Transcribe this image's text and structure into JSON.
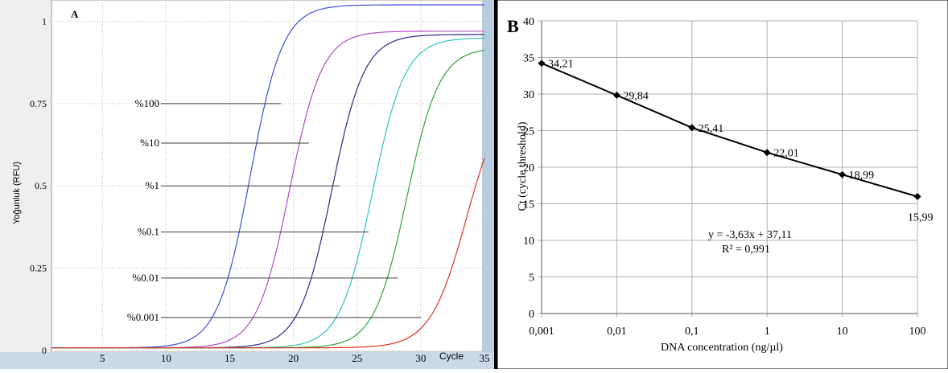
{
  "chart_data": [
    {
      "type": "line",
      "panel_label": "A",
      "ylabel": "Yoğunluk (RFU)",
      "xlabel": "Cycle",
      "xlim": [
        1,
        35
      ],
      "ylim": [
        0,
        1.05
      ],
      "grid": true,
      "x_ticks": [
        "5",
        "10",
        "15",
        "20",
        "25",
        "30",
        "35"
      ],
      "y_ticks": [
        "0",
        "0.25",
        "0.5",
        "0.75",
        "1"
      ],
      "series": [
        {
          "name": "%100",
          "color": "#3b4fd6",
          "midpoint": 16.6,
          "slope": 0.78,
          "plateau": 1.05,
          "label_y": 0.75,
          "label_end_x": 19.0
        },
        {
          "name": "%10",
          "color": "#b04bc4",
          "midpoint": 19.7,
          "slope": 0.78,
          "plateau": 0.97,
          "label_y": 0.63,
          "label_end_x": 21.2
        },
        {
          "name": "%1",
          "color": "#2a2a8c",
          "midpoint": 23.0,
          "slope": 0.78,
          "plateau": 0.96,
          "label_y": 0.5,
          "label_end_x": 23.6
        },
        {
          "name": "%0.1",
          "color": "#2fc3bd",
          "midpoint": 26.2,
          "slope": 0.78,
          "plateau": 0.95,
          "label_y": 0.36,
          "label_end_x": 25.9
        },
        {
          "name": "%0.01",
          "color": "#2ea43a",
          "midpoint": 28.9,
          "slope": 0.78,
          "plateau": 0.92,
          "label_y": 0.22,
          "label_end_x": 28.2
        },
        {
          "name": "%0.001",
          "color": "#e0311f",
          "midpoint": 33.6,
          "slope": 0.7,
          "plateau": 0.8,
          "label_y": 0.1,
          "label_end_x": 30.0
        }
      ]
    },
    {
      "type": "line",
      "panel_label": "B",
      "xlabel": "DNA concentration (ng/µl)",
      "ylabel": "Ct (cycle threshold)",
      "x_scale": "log",
      "categories": [
        "0,001",
        "0,01",
        "0,1",
        "1",
        "10",
        "100"
      ],
      "values": [
        34.21,
        29.84,
        25.41,
        22.01,
        18.99,
        15.99
      ],
      "data_labels": [
        "34,21",
        "29,84",
        "25,41",
        "22,01",
        "18,99",
        "15,99"
      ],
      "ylim": [
        0,
        40
      ],
      "y_ticks": [
        "0",
        "5",
        "10",
        "15",
        "20",
        "25",
        "30",
        "35",
        "40"
      ],
      "grid": true,
      "annotations": [
        "y = -3,63x + 37,11",
        "R² = 0,991"
      ]
    }
  ]
}
